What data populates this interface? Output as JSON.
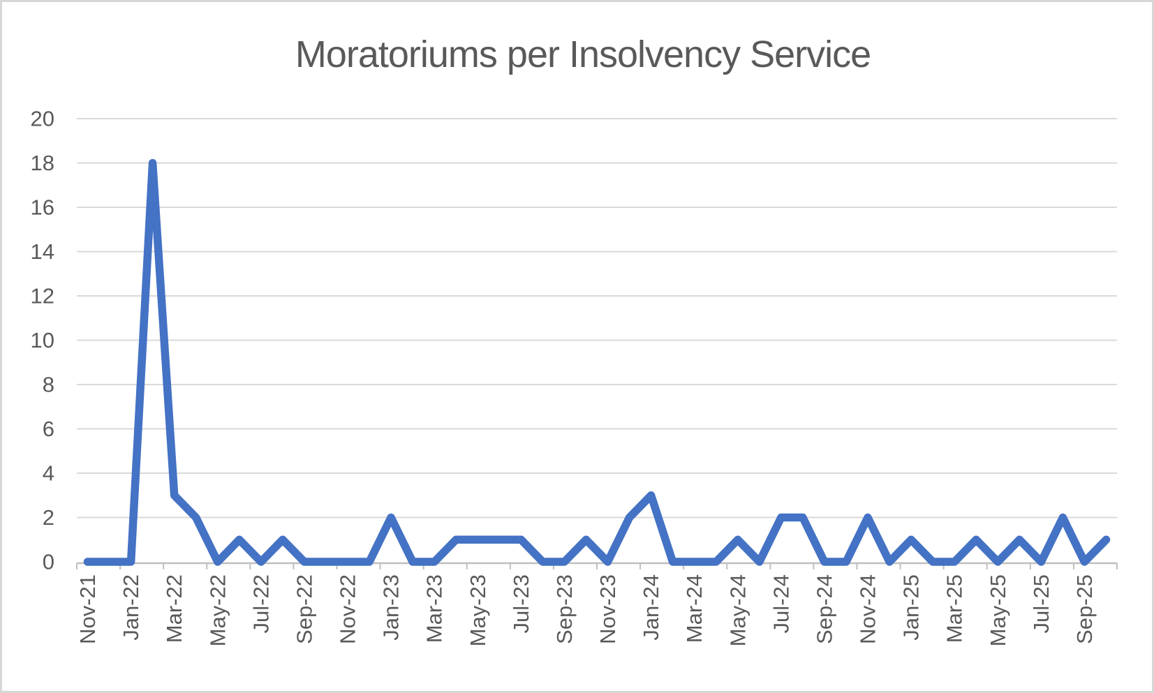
{
  "chart_data": {
    "type": "line",
    "title": "Moratoriums per Insolvency Service",
    "xlabel": "",
    "ylabel": "",
    "categories": [
      "Nov-21",
      "Dec-21",
      "Jan-22",
      "Feb-22",
      "Mar-22",
      "Apr-22",
      "May-22",
      "Jun-22",
      "Jul-22",
      "Aug-22",
      "Sep-22",
      "Oct-22",
      "Nov-22",
      "Dec-22",
      "Jan-23",
      "Feb-23",
      "Mar-23",
      "Apr-23",
      "May-23",
      "Jun-23",
      "Jul-23",
      "Aug-23",
      "Sep-23",
      "Oct-23",
      "Nov-23",
      "Dec-23",
      "Jan-24",
      "Feb-24",
      "Mar-24",
      "Apr-24",
      "May-24",
      "Jun-24",
      "Jul-24",
      "Aug-24",
      "Sep-24",
      "Oct-24",
      "Nov-24",
      "Dec-24",
      "Jan-25",
      "Feb-25",
      "Mar-25",
      "Apr-25",
      "May-25",
      "Jun-25",
      "Jul-25",
      "Aug-25",
      "Sep-25",
      "Oct-25"
    ],
    "values": [
      0,
      0,
      0,
      18,
      3,
      2,
      0,
      1,
      0,
      1,
      0,
      0,
      0,
      0,
      2,
      0,
      0,
      1,
      1,
      1,
      1,
      0,
      0,
      1,
      0,
      2,
      3,
      0,
      0,
      0,
      1,
      0,
      2,
      2,
      0,
      0,
      2,
      0,
      1,
      0,
      0,
      1,
      0,
      1,
      0,
      2,
      0,
      1
    ],
    "x_tick_labels": [
      "Nov-21",
      "Jan-22",
      "Mar-22",
      "May-22",
      "Jul-22",
      "Sep-22",
      "Nov-22",
      "Jan-23",
      "Mar-23",
      "May-23",
      "Jul-23",
      "Sep-23",
      "Nov-23",
      "Jan-24",
      "Mar-24",
      "May-24",
      "Jul-24",
      "Sep-24",
      "Nov-24",
      "Jan-25",
      "Mar-25",
      "May-25",
      "Jul-25",
      "Sep-25"
    ],
    "x_label_interval": 2,
    "y_ticks": [
      0,
      2,
      4,
      6,
      8,
      10,
      12,
      14,
      16,
      18,
      20
    ],
    "ylim": [
      0,
      20
    ],
    "grid": "horizontal-major",
    "legend": "none",
    "series_name": "Moratoriums",
    "colors": {
      "line": "#4472C4",
      "gridline": "#D9D9D9",
      "axis": "#BFBFBF",
      "label_text": "#595959",
      "title_text": "#595959",
      "page_border": "#D7D7D7",
      "background": "#FFFFFF"
    }
  }
}
